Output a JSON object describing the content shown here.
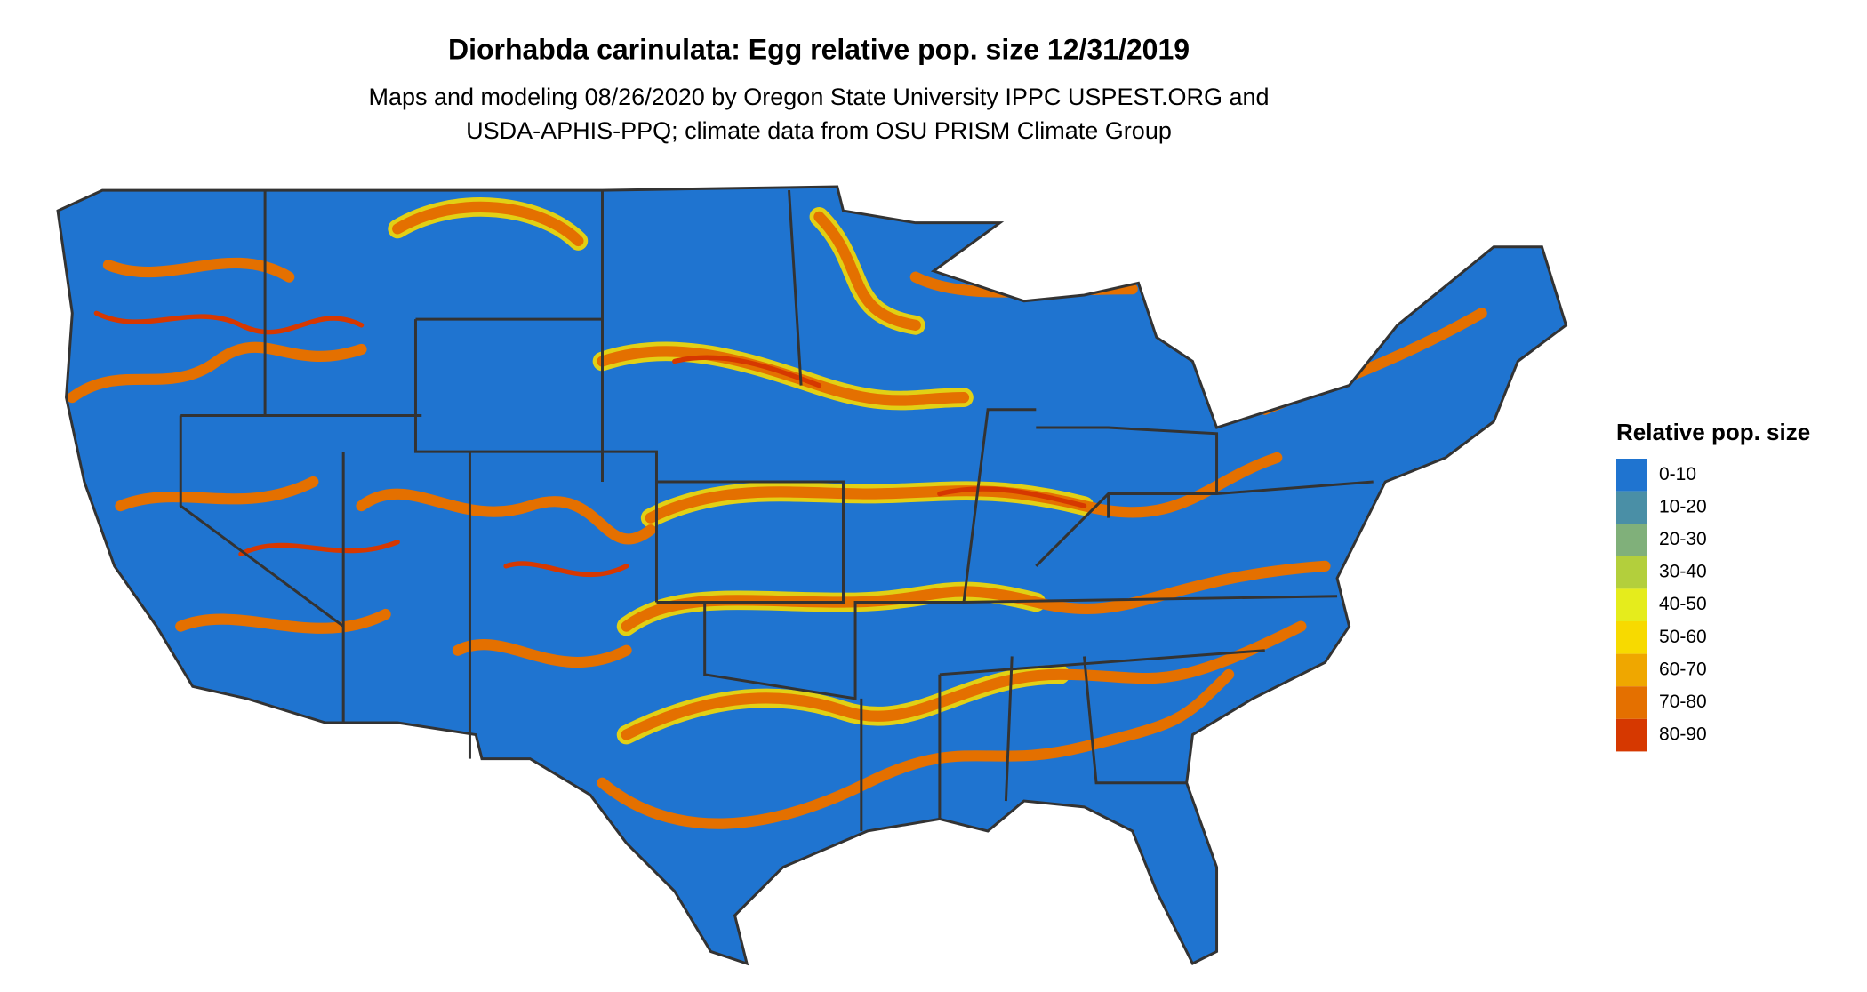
{
  "header": {
    "title": "Diorhabda carinulata: Egg relative pop. size 12/31/2019",
    "subtitle": [
      "Maps and modeling 08/26/2020 by Oregon State University IPPC USPEST.ORG and",
      "USDA-APHIS-PPQ; climate data from OSU PRISM Climate Group"
    ]
  },
  "legend": {
    "title": "Relative pop. size",
    "items": [
      {
        "label": "0-10",
        "color": "#1f74d0"
      },
      {
        "label": "10-20",
        "color": "#4a8fa6"
      },
      {
        "label": "20-30",
        "color": "#80b07a"
      },
      {
        "label": "30-40",
        "color": "#b3cf3c"
      },
      {
        "label": "40-50",
        "color": "#e5ec1c"
      },
      {
        "label": "50-60",
        "color": "#f7da00"
      },
      {
        "label": "60-70",
        "color": "#efa700"
      },
      {
        "label": "70-80",
        "color": "#e47000"
      },
      {
        "label": "80-90",
        "color": "#d63800"
      }
    ]
  }
}
